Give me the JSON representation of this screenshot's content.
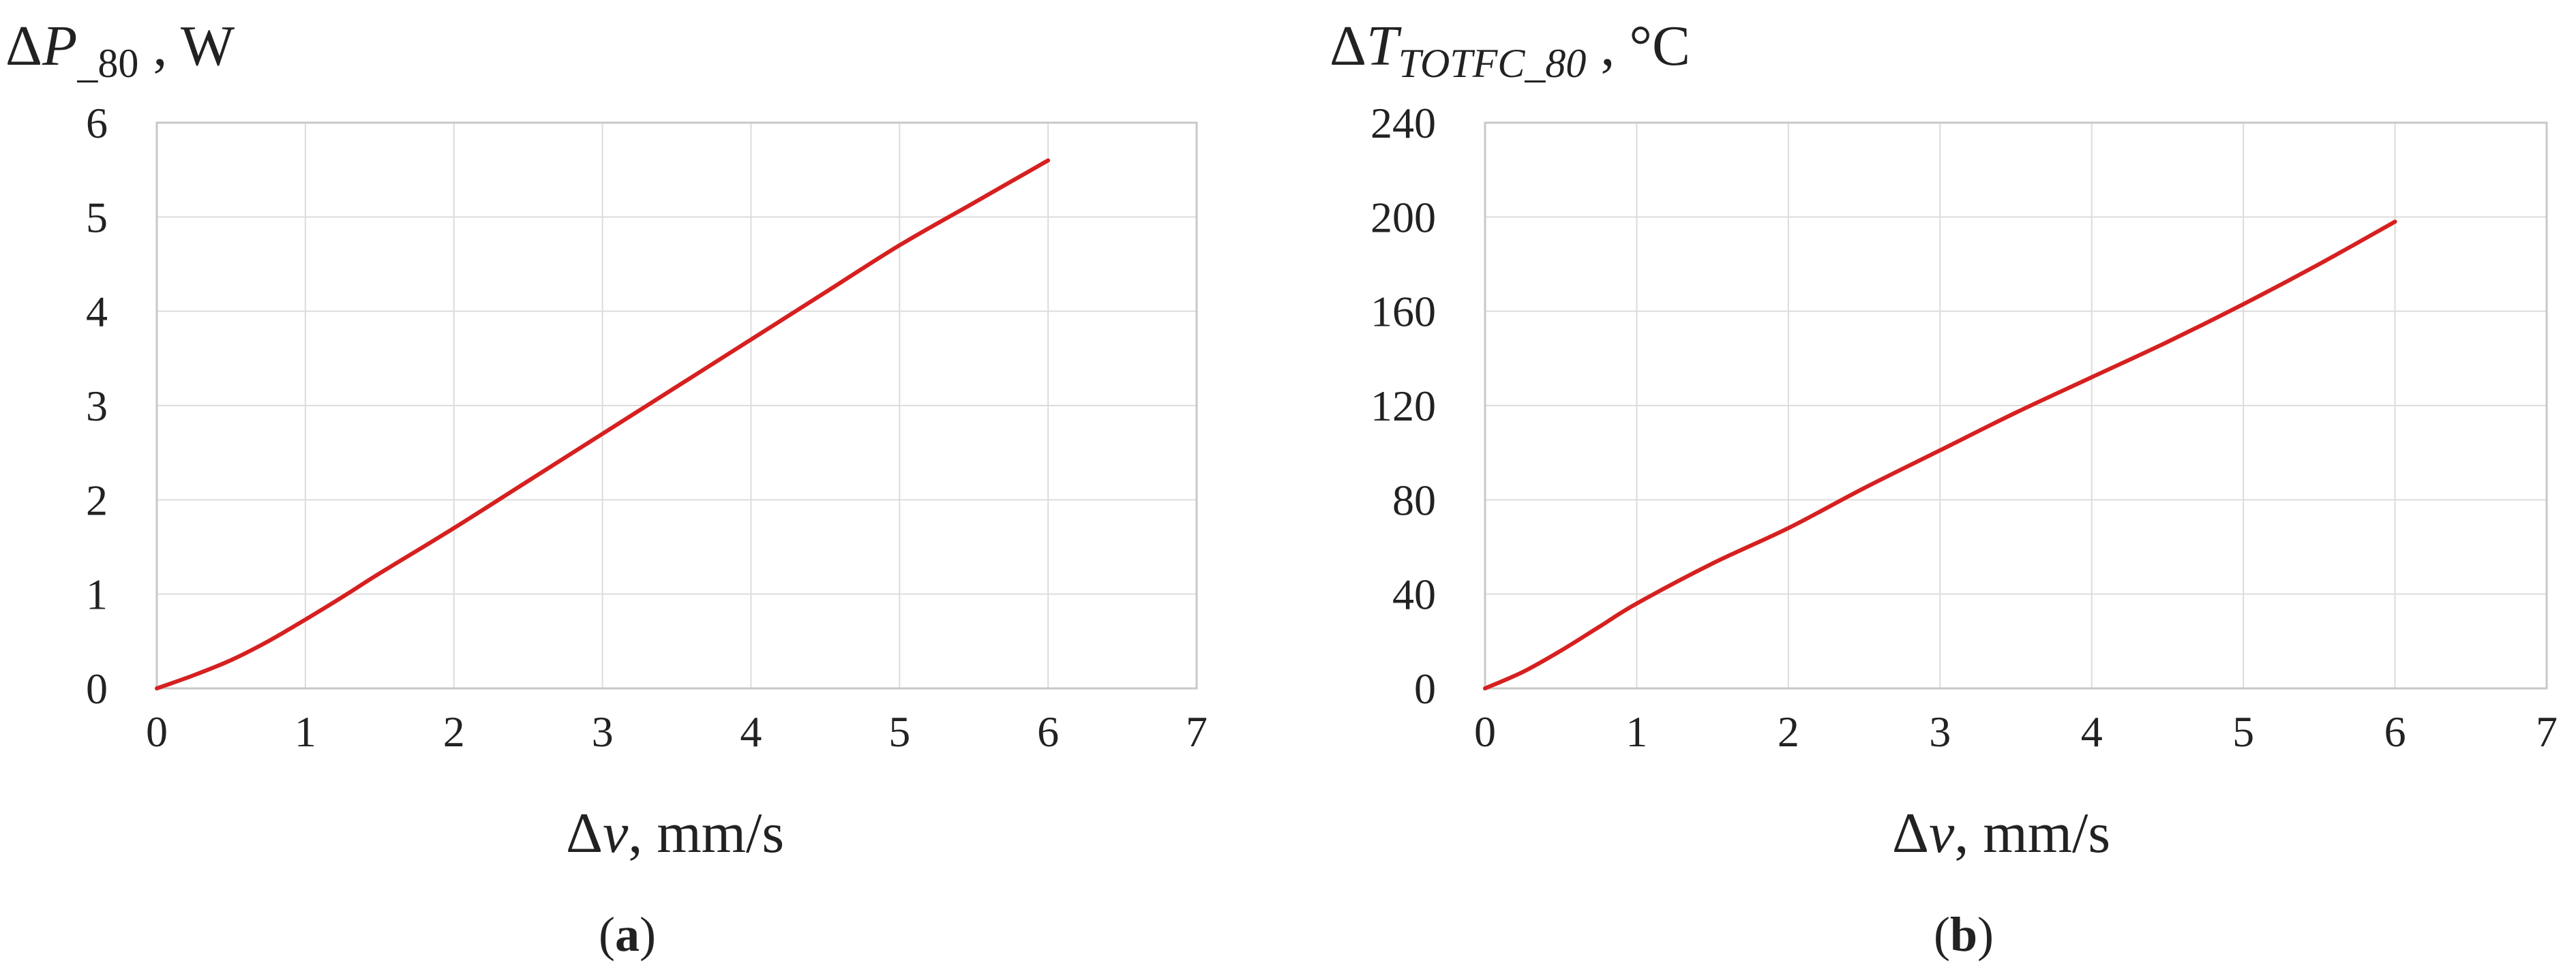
{
  "chart_data": [
    {
      "type": "line",
      "panel_label": "a",
      "ylabel": {
        "delta": "Δ",
        "var": "P",
        "sub": "_80",
        "unit": " , W"
      },
      "xlabel": {
        "delta": "Δ",
        "var": "v",
        "unit": ", mm/s"
      },
      "xlim": [
        0,
        7
      ],
      "ylim": [
        0,
        6
      ],
      "x_ticks": [
        "0",
        "1",
        "2",
        "3",
        "4",
        "5",
        "6",
        "7"
      ],
      "y_ticks": [
        "0",
        "1",
        "2",
        "3",
        "4",
        "5",
        "6"
      ],
      "grid": true,
      "series": [
        {
          "color": "#d62020",
          "x": [
            0,
            0.25,
            0.5,
            0.75,
            1,
            1.25,
            1.5,
            2,
            2.5,
            3,
            3.5,
            4,
            4.5,
            5,
            5.5,
            6
          ],
          "y": [
            0,
            0.14,
            0.3,
            0.5,
            0.73,
            0.97,
            1.22,
            1.7,
            2.2,
            2.7,
            3.2,
            3.7,
            4.2,
            4.7,
            5.15,
            5.6
          ]
        }
      ]
    },
    {
      "type": "line",
      "panel_label": "b",
      "ylabel": {
        "delta": "Δ",
        "var": "T",
        "sub": "TOTFC_80",
        "unit": " , °C"
      },
      "xlabel": {
        "delta": "Δ",
        "var": "v",
        "unit": ", mm/s"
      },
      "xlim": [
        0,
        7
      ],
      "ylim": [
        0,
        240
      ],
      "x_ticks": [
        "0",
        "1",
        "2",
        "3",
        "4",
        "5",
        "6",
        "7"
      ],
      "y_ticks": [
        "0",
        "40",
        "80",
        "120",
        "160",
        "200",
        "240"
      ],
      "grid": true,
      "series": [
        {
          "color": "#d62020",
          "x": [
            0,
            0.25,
            0.5,
            0.75,
            1,
            1.5,
            2,
            2.5,
            3,
            3.5,
            4,
            4.5,
            5,
            5.5,
            6
          ],
          "y": [
            0,
            7,
            16,
            26,
            36,
            53,
            68,
            85,
            101,
            117,
            132,
            147,
            163,
            180,
            198
          ]
        }
      ]
    }
  ]
}
